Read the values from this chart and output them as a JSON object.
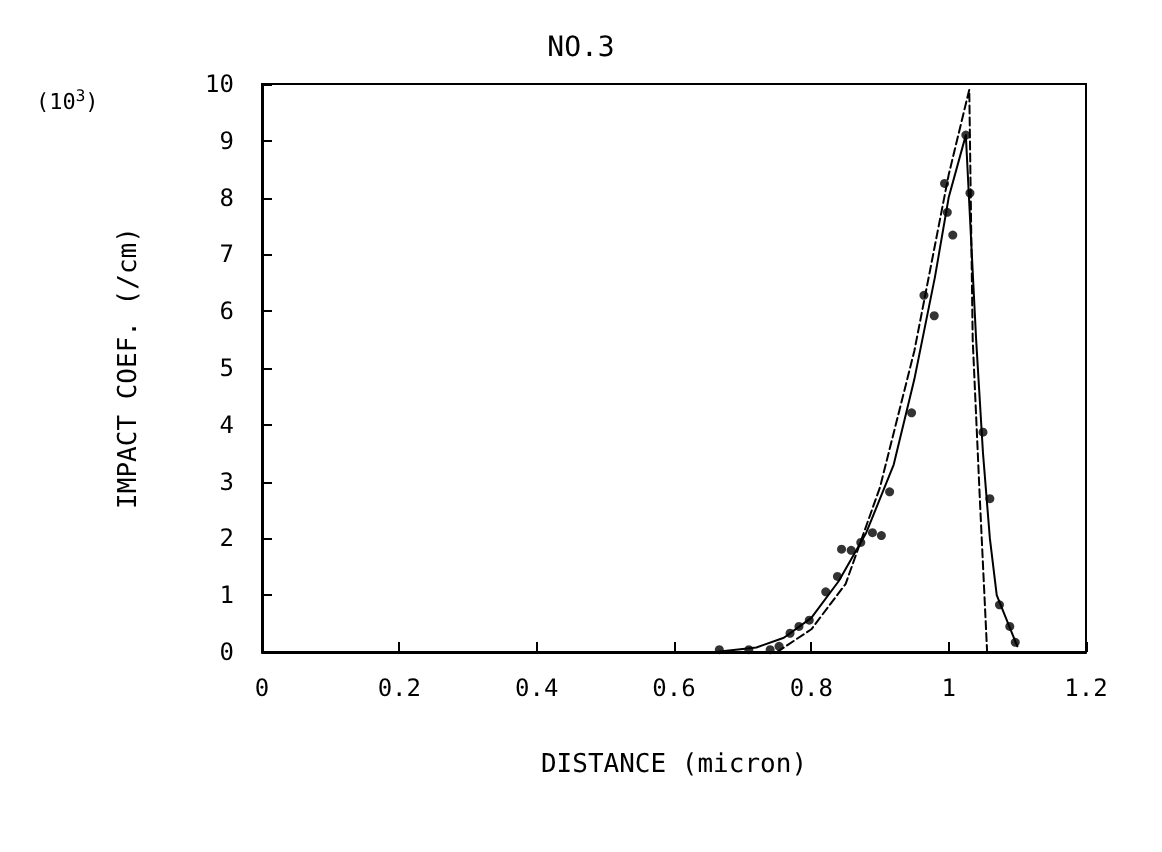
{
  "chart_data": {
    "type": "scatter",
    "title": "NO.3",
    "xlabel": "DISTANCE (micron)",
    "ylabel": "IMPACT COEF. (/cm)",
    "annotations": [
      "(10$^{3}$)"
    ],
    "xlim": [
      0,
      1.2
    ],
    "xticks": [
      0,
      0.2,
      0.4,
      0.6,
      0.8,
      1,
      1.2
    ],
    "ylim": [
      0,
      10
    ],
    "yticks": [
      0,
      1,
      2,
      3,
      4,
      5,
      6,
      7,
      8,
      9,
      10
    ],
    "grid": false,
    "series": [
      {
        "marker": "circle",
        "color": "#000000",
        "x": [
          0.666,
          0.709,
          0.74,
          0.753,
          0.769,
          0.782,
          0.797,
          0.821,
          0.838,
          0.844,
          0.858,
          0.872,
          0.889,
          0.902,
          0.914,
          0.946,
          0.964,
          0.979,
          0.994,
          0.998,
          1.006,
          1.025,
          1.031,
          1.05,
          1.06,
          1.074,
          1.089,
          1.097
        ],
        "values": [
          0.04,
          0.04,
          0.04,
          0.1,
          0.33,
          0.45,
          0.56,
          1.06,
          1.33,
          1.81,
          1.79,
          1.93,
          2.1,
          2.05,
          2.82,
          4.21,
          6.28,
          5.92,
          8.25,
          7.74,
          7.34,
          9.1,
          8.08,
          3.87,
          2.7,
          0.83,
          0.45,
          0.17
        ]
      },
      {
        "type": "line",
        "marker": "none",
        "line_style": "solid",
        "color": "#000000",
        "x": [
          0.66,
          0.72,
          0.76,
          0.8,
          0.84,
          0.88,
          0.92,
          0.95,
          0.98,
          1,
          1.025,
          1.04,
          1.05,
          1.06,
          1.07,
          1.09,
          1.1
        ],
        "values": [
          0,
          0.08,
          0.25,
          0.6,
          1.25,
          2.1,
          3.3,
          4.8,
          6.6,
          8,
          9.1,
          5.5,
          3.5,
          2,
          1,
          0.4,
          0.1
        ]
      },
      {
        "type": "line",
        "marker": "none",
        "line_style": "dashed",
        "color": "#000000",
        "x": [
          0.75,
          0.8,
          0.85,
          0.9,
          0.95,
          1,
          1.03,
          1.035,
          1.045,
          1.056
        ],
        "values": [
          0,
          0.4,
          1.2,
          2.9,
          5.3,
          8.4,
          9.9,
          5.5,
          2.8,
          0
        ]
      }
    ]
  }
}
